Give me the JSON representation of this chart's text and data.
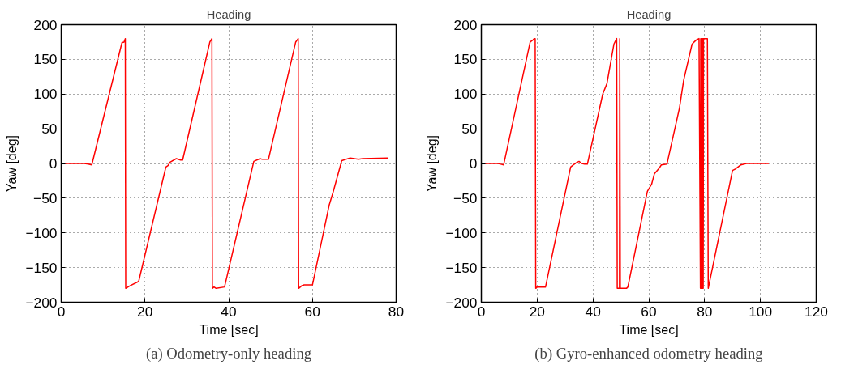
{
  "chart_data": [
    {
      "type": "line",
      "title": "Heading",
      "xlabel": "Time [sec]",
      "ylabel": "Yaw [deg]",
      "annotations": [
        "(a) Odometry-only heading"
      ],
      "xlim": [
        0,
        80
      ],
      "ylim": [
        -200,
        200
      ],
      "xticks": [
        0,
        20,
        40,
        60,
        80
      ],
      "yticks": [
        {
          "value": -200,
          "label": "−200"
        },
        {
          "value": -150,
          "label": "−150"
        },
        {
          "value": -100,
          "label": "−100"
        },
        {
          "value": -50,
          "label": "−50"
        },
        0,
        50,
        100,
        150,
        200
      ],
      "grid": true,
      "marker": "none",
      "line_style": "solid",
      "series": [
        {
          "color": "#ff0000",
          "x": [
            0,
            5.5,
            6.5,
            7.3,
            14.5,
            15,
            15.3,
            15.4,
            16.5,
            18.5,
            25,
            25.5,
            26,
            27.5,
            28.5,
            29,
            35.5,
            36,
            36.1,
            36.5,
            37,
            39,
            46,
            47.5,
            48,
            49.5,
            56,
            56.6,
            56.7,
            57.5,
            58,
            60,
            64,
            65,
            67,
            69,
            71,
            72,
            78
          ],
          "values": [
            0,
            0,
            -1,
            -2,
            174,
            175,
            180,
            -180,
            -176,
            -170,
            -5,
            -3,
            2,
            7,
            5,
            5,
            175,
            180,
            -180,
            -178,
            -180,
            -178,
            3,
            7,
            6,
            6,
            175,
            180,
            -180,
            -176,
            -175,
            -175,
            -60,
            -40,
            4,
            8,
            6,
            7,
            8
          ]
        }
      ]
    },
    {
      "type": "line",
      "title": "Heading",
      "xlabel": "Time [sec]",
      "ylabel": "Yaw [deg]",
      "annotations": [
        "(b) Gyro-enhanced odometry heading"
      ],
      "xlim": [
        0,
        120
      ],
      "ylim": [
        -200,
        200
      ],
      "xticks": [
        0,
        20,
        40,
        60,
        80,
        100,
        120
      ],
      "yticks": [
        {
          "value": -200,
          "label": "−200"
        },
        {
          "value": -150,
          "label": "−150"
        },
        {
          "value": -100,
          "label": "−100"
        },
        {
          "value": -50,
          "label": "−50"
        },
        0,
        50,
        100,
        150,
        200
      ],
      "grid": true,
      "marker": "none",
      "line_style": "solid",
      "series": [
        {
          "color": "#ff0000",
          "x": [
            0,
            6,
            7,
            8,
            17.5,
            18.5,
            19,
            19.3,
            19.5,
            20,
            23,
            32,
            33,
            34,
            35,
            36,
            37,
            38,
            43.5,
            45,
            47.5,
            48.5,
            48.7,
            49.5,
            49.6,
            49.8,
            52,
            52.5,
            59.5,
            61,
            62,
            63.5,
            64.5,
            66.5,
            71,
            72.5,
            75.5,
            77,
            78,
            78.5,
            78.6,
            78.7,
            78.8,
            78.9,
            79,
            79.1,
            79.2,
            79.3,
            79.4,
            79.5,
            79.6,
            80,
            81,
            81.3,
            90,
            91,
            93,
            95,
            103
          ],
          "values": [
            0,
            0,
            -1,
            -2,
            175,
            178,
            180,
            180,
            -180,
            -178,
            -178,
            -5,
            -2,
            1,
            3,
            0,
            -1,
            -1,
            100,
            115,
            172,
            180,
            -180,
            -180,
            180,
            -180,
            -180,
            -178,
            -40,
            -30,
            -15,
            -8,
            -2,
            -1,
            80,
            120,
            172,
            178,
            180,
            -180,
            180,
            -180,
            180,
            -180,
            180,
            -180,
            180,
            -180,
            180,
            -180,
            180,
            180,
            180,
            -180,
            -10,
            -8,
            -2,
            0,
            0
          ]
        }
      ]
    }
  ]
}
